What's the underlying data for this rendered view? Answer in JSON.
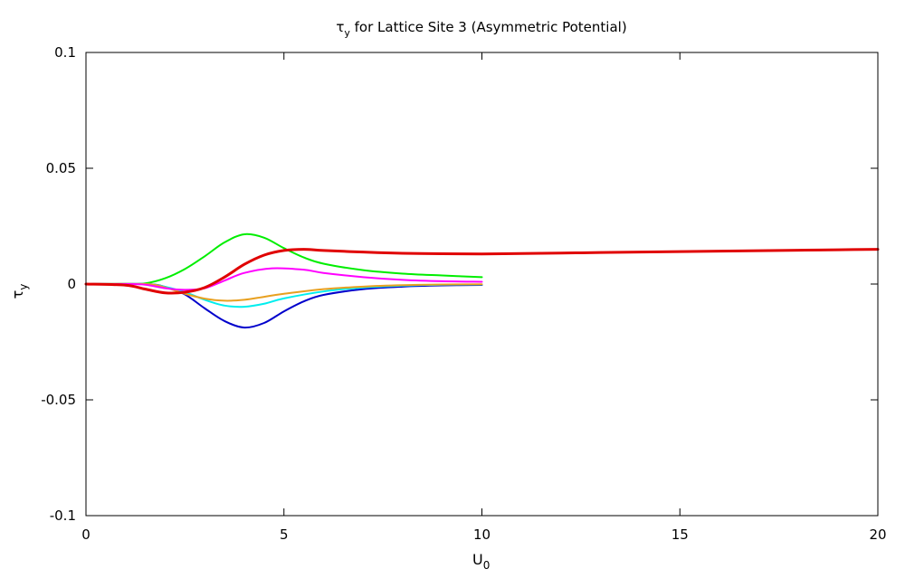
{
  "chart_data": {
    "type": "line",
    "title": {
      "main": "τ",
      "sub": "y",
      "rest": " for Lattice Site 3 (Asymmetric Potential)"
    },
    "xlabel": {
      "main": "U",
      "sub": "0"
    },
    "ylabel": {
      "main": "τ",
      "sub": "y"
    },
    "xlim": [
      0,
      20
    ],
    "ylim": [
      -0.1,
      0.1
    ],
    "xticks": [
      0,
      5,
      10,
      15,
      20
    ],
    "xtick_labels": [
      "0",
      "5",
      "10",
      "15",
      "20"
    ],
    "yticks": [
      -0.1,
      -0.05,
      0,
      0.05,
      0.1
    ],
    "ytick_labels": [
      "-0.1",
      "-0.05",
      "0",
      "0.05",
      "0.1"
    ],
    "grid": false,
    "series": [
      {
        "color": "#00ee00",
        "width": 2,
        "x": [
          0,
          1,
          1.5,
          2,
          2.5,
          3,
          3.5,
          4,
          4.5,
          5,
          5.5,
          6,
          7,
          8,
          9,
          10
        ],
        "y": [
          0,
          0,
          0.0003,
          0.0025,
          0.0065,
          0.012,
          0.018,
          0.0215,
          0.02,
          0.0155,
          0.0115,
          0.0088,
          0.006,
          0.0045,
          0.0037,
          0.003
        ]
      },
      {
        "color": "#0000cc",
        "width": 2,
        "x": [
          0,
          1.5,
          2,
          2.5,
          3,
          3.5,
          4,
          4.5,
          5,
          5.5,
          6,
          7,
          8,
          9,
          10
        ],
        "y": [
          0,
          0,
          -0.0012,
          -0.0045,
          -0.0105,
          -0.016,
          -0.0188,
          -0.0168,
          -0.0118,
          -0.0075,
          -0.0047,
          -0.0022,
          -0.0011,
          -0.0006,
          -0.0004
        ]
      },
      {
        "color": "#00eeee",
        "width": 2,
        "x": [
          0,
          1.5,
          2,
          2.5,
          3,
          3.5,
          4,
          4.5,
          5,
          6,
          7,
          8,
          9,
          10
        ],
        "y": [
          0,
          0,
          -0.0012,
          -0.0035,
          -0.0068,
          -0.0093,
          -0.0098,
          -0.0085,
          -0.0062,
          -0.0032,
          -0.0015,
          -0.0007,
          -0.0003,
          -0.0002
        ]
      },
      {
        "color": "#e8a020",
        "width": 2,
        "x": [
          0,
          1.5,
          2,
          2.5,
          3,
          3.5,
          4,
          4.5,
          5,
          6,
          7,
          8,
          9,
          10
        ],
        "y": [
          0,
          0,
          -0.0015,
          -0.0042,
          -0.0063,
          -0.0072,
          -0.0068,
          -0.0055,
          -0.0042,
          -0.0022,
          -0.0011,
          -0.0005,
          -0.0002,
          -0.0001
        ]
      },
      {
        "color": "#ff00ff",
        "width": 2,
        "x": [
          0,
          1,
          1.5,
          2,
          2.5,
          3,
          3.5,
          4,
          4.7,
          5.5,
          6,
          7,
          8,
          9,
          10
        ],
        "y": [
          0,
          0,
          -0.0003,
          -0.0018,
          -0.0025,
          -0.0018,
          0.0015,
          0.0048,
          0.0068,
          0.0062,
          0.0048,
          0.003,
          0.0018,
          0.0012,
          0.001
        ]
      },
      {
        "color": "#e00000",
        "width": 3,
        "x": [
          0,
          1,
          1.5,
          2,
          2.5,
          3,
          3.5,
          4,
          4.5,
          5,
          5.5,
          6,
          7,
          8,
          9,
          10,
          11,
          12,
          13,
          14,
          15,
          16,
          17,
          18,
          19,
          20
        ],
        "y": [
          0,
          -0.0005,
          -0.0022,
          -0.0038,
          -0.0035,
          -0.0015,
          0.003,
          0.0085,
          0.0125,
          0.0145,
          0.015,
          0.0145,
          0.0138,
          0.0133,
          0.0131,
          0.013,
          0.0132,
          0.0134,
          0.0136,
          0.0138,
          0.014,
          0.0142,
          0.0144,
          0.0146,
          0.0148,
          0.015
        ]
      }
    ]
  }
}
